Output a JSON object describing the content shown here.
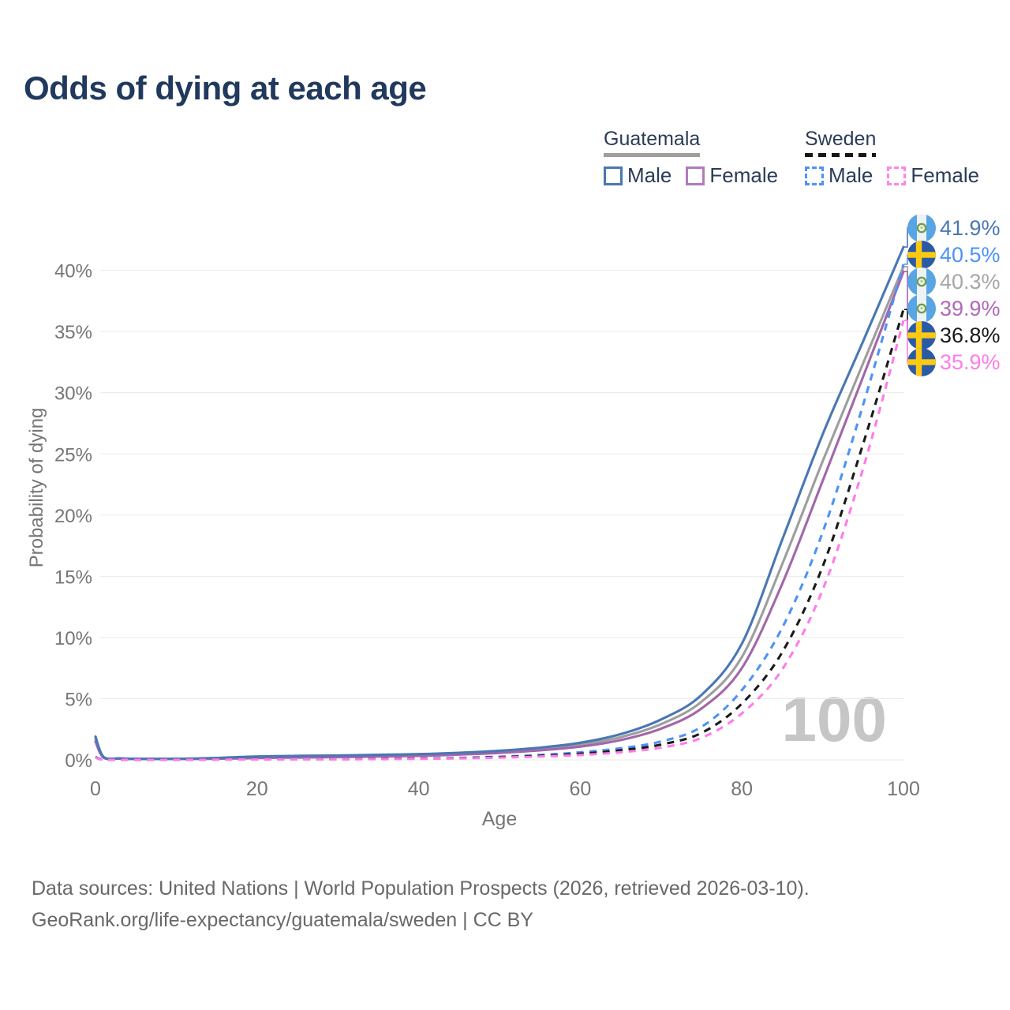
{
  "page": {
    "title": "Odds of dying at each age"
  },
  "legend": {
    "position": "top-right",
    "groups": [
      {
        "name": "Guatemala",
        "line_style": "solid",
        "underline_color": "#9e9e9e",
        "items": [
          {
            "label": "Male",
            "color": "#4a77b4"
          },
          {
            "label": "Female",
            "color": "#b07cba"
          }
        ]
      },
      {
        "name": "Sweden",
        "line_style": "dashed",
        "underline_color": "#161616",
        "items": [
          {
            "label": "Male",
            "color": "#4d92f7"
          },
          {
            "label": "Female",
            "color": "#ff85e8"
          }
        ]
      }
    ]
  },
  "chart_data": {
    "type": "line",
    "title": "Odds of dying at each age",
    "xlabel": "Age",
    "ylabel": "Probability of dying",
    "xlim": [
      0,
      100
    ],
    "ylim_pct": [
      0,
      43.5
    ],
    "grid": "horizontal-only",
    "watermark": "100",
    "x_ticks": [
      0,
      20,
      40,
      60,
      80,
      100
    ],
    "x_tick_labels": [
      "0",
      "20",
      "40",
      "60",
      "80",
      "100"
    ],
    "y_ticks": [
      0,
      5,
      10,
      15,
      20,
      25,
      30,
      35,
      40
    ],
    "y_tick_labels": [
      "0%",
      "5%",
      "10%",
      "15%",
      "20%",
      "25%",
      "30%",
      "35%",
      "40%"
    ],
    "series": [
      {
        "id": "gt-male",
        "name": "Guatemala Male",
        "country": "Guatemala",
        "sex": "Male",
        "color": "#4a77b4",
        "dashed": false,
        "flag": "gt",
        "end_label": "41.9%",
        "label_color": "#4a77b4",
        "points": [
          [
            0,
            1.9
          ],
          [
            1,
            0.25
          ],
          [
            3,
            0.12
          ],
          [
            5,
            0.09
          ],
          [
            10,
            0.09
          ],
          [
            15,
            0.16
          ],
          [
            20,
            0.28
          ],
          [
            25,
            0.33
          ],
          [
            30,
            0.36
          ],
          [
            35,
            0.41
          ],
          [
            40,
            0.47
          ],
          [
            45,
            0.58
          ],
          [
            50,
            0.75
          ],
          [
            55,
            1.0
          ],
          [
            60,
            1.4
          ],
          [
            65,
            2.1
          ],
          [
            70,
            3.3
          ],
          [
            75,
            5.3
          ],
          [
            80,
            9.5
          ],
          [
            85,
            18.0
          ],
          [
            90,
            26.6
          ],
          [
            95,
            34.2
          ],
          [
            100,
            41.9
          ]
        ]
      },
      {
        "id": "se-male",
        "name": "Sweden Male",
        "country": "Sweden",
        "sex": "Male",
        "color": "#4d92f7",
        "dashed": true,
        "flag": "se",
        "end_label": "40.5%",
        "label_color": "#4d92f7",
        "points": [
          [
            0,
            0.25
          ],
          [
            1,
            0.03
          ],
          [
            5,
            0.02
          ],
          [
            10,
            0.02
          ],
          [
            15,
            0.04
          ],
          [
            20,
            0.06
          ],
          [
            25,
            0.07
          ],
          [
            30,
            0.07
          ],
          [
            35,
            0.09
          ],
          [
            40,
            0.11
          ],
          [
            45,
            0.17
          ],
          [
            50,
            0.26
          ],
          [
            55,
            0.4
          ],
          [
            60,
            0.62
          ],
          [
            65,
            0.95
          ],
          [
            70,
            1.5
          ],
          [
            75,
            2.7
          ],
          [
            80,
            5.7
          ],
          [
            85,
            10.8
          ],
          [
            90,
            18.6
          ],
          [
            95,
            29.0
          ],
          [
            100,
            40.5
          ]
        ]
      },
      {
        "id": "gt-total",
        "name": "Guatemala (both sexes)",
        "country": "Guatemala",
        "sex": "Both",
        "color": "#9e9e9e",
        "dashed": false,
        "flag": "gt",
        "end_label": "40.3%",
        "label_color": "#a6a6a6",
        "points": [
          [
            0,
            1.7
          ],
          [
            1,
            0.22
          ],
          [
            3,
            0.11
          ],
          [
            5,
            0.08
          ],
          [
            10,
            0.08
          ],
          [
            15,
            0.12
          ],
          [
            20,
            0.22
          ],
          [
            25,
            0.26
          ],
          [
            30,
            0.29
          ],
          [
            35,
            0.34
          ],
          [
            40,
            0.4
          ],
          [
            45,
            0.5
          ],
          [
            50,
            0.66
          ],
          [
            55,
            0.88
          ],
          [
            60,
            1.24
          ],
          [
            65,
            1.86
          ],
          [
            70,
            2.92
          ],
          [
            75,
            4.75
          ],
          [
            80,
            8.4
          ],
          [
            85,
            16.0
          ],
          [
            90,
            24.4
          ],
          [
            95,
            32.4
          ],
          [
            100,
            40.3
          ]
        ]
      },
      {
        "id": "gt-female",
        "name": "Guatemala Female",
        "country": "Guatemala",
        "sex": "Female",
        "color": "#a266aa",
        "dashed": false,
        "flag": "gt",
        "end_label": "39.9%",
        "label_color": "#b168b8",
        "points": [
          [
            0,
            1.5
          ],
          [
            1,
            0.19
          ],
          [
            3,
            0.1
          ],
          [
            5,
            0.07
          ],
          [
            10,
            0.07
          ],
          [
            15,
            0.09
          ],
          [
            20,
            0.15
          ],
          [
            25,
            0.19
          ],
          [
            30,
            0.22
          ],
          [
            35,
            0.27
          ],
          [
            40,
            0.33
          ],
          [
            45,
            0.43
          ],
          [
            50,
            0.57
          ],
          [
            55,
            0.78
          ],
          [
            60,
            1.08
          ],
          [
            65,
            1.62
          ],
          [
            70,
            2.55
          ],
          [
            75,
            4.2
          ],
          [
            80,
            7.5
          ],
          [
            85,
            14.4
          ],
          [
            90,
            22.8
          ],
          [
            95,
            31.3
          ],
          [
            100,
            39.9
          ]
        ]
      },
      {
        "id": "se-total",
        "name": "Sweden (both sexes)",
        "country": "Sweden",
        "sex": "Both",
        "color": "#1a1a1a",
        "dashed": true,
        "flag": "se",
        "end_label": "36.8%",
        "label_color": "#1a1a1a",
        "points": [
          [
            0,
            0.22
          ],
          [
            1,
            0.03
          ],
          [
            5,
            0.02
          ],
          [
            10,
            0.02
          ],
          [
            15,
            0.03
          ],
          [
            20,
            0.05
          ],
          [
            25,
            0.06
          ],
          [
            30,
            0.06
          ],
          [
            35,
            0.08
          ],
          [
            40,
            0.1
          ],
          [
            45,
            0.14
          ],
          [
            50,
            0.22
          ],
          [
            55,
            0.33
          ],
          [
            60,
            0.5
          ],
          [
            65,
            0.78
          ],
          [
            70,
            1.25
          ],
          [
            75,
            2.2
          ],
          [
            80,
            4.6
          ],
          [
            85,
            8.8
          ],
          [
            90,
            15.8
          ],
          [
            95,
            25.8
          ],
          [
            100,
            36.8
          ]
        ]
      },
      {
        "id": "se-female",
        "name": "Sweden Female",
        "country": "Sweden",
        "sex": "Female",
        "color": "#ff7ce8",
        "dashed": true,
        "flag": "se",
        "end_label": "35.9%",
        "label_color": "#ff7ce8",
        "points": [
          [
            0,
            0.2
          ],
          [
            1,
            0.02
          ],
          [
            5,
            0.01
          ],
          [
            10,
            0.01
          ],
          [
            15,
            0.02
          ],
          [
            20,
            0.04
          ],
          [
            25,
            0.05
          ],
          [
            30,
            0.05
          ],
          [
            35,
            0.06
          ],
          [
            40,
            0.08
          ],
          [
            45,
            0.12
          ],
          [
            50,
            0.18
          ],
          [
            55,
            0.27
          ],
          [
            60,
            0.4
          ],
          [
            65,
            0.62
          ],
          [
            70,
            1.0
          ],
          [
            75,
            1.8
          ],
          [
            80,
            3.8
          ],
          [
            85,
            7.4
          ],
          [
            90,
            13.9
          ],
          [
            95,
            23.8
          ],
          [
            100,
            35.9
          ]
        ]
      }
    ]
  },
  "footer": {
    "line1": "Data sources: United Nations | World Population Prospects (2026, retrieved 2026-03-10).",
    "line2": "GeoRank.org/life-expectancy/guatemala/sweden | CC BY"
  }
}
